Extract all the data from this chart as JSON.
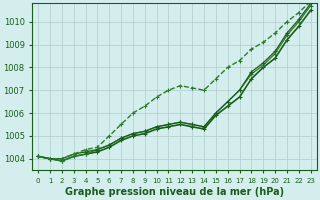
{
  "title": "Graphe pression niveau de la mer (hPa)",
  "background_color": "#d4eeee",
  "grid_color": "#b0cccc",
  "line_color_dark": "#1a5c1a",
  "line_color_mid": "#2d7a2d",
  "x_labels": [
    "0",
    "1",
    "2",
    "3",
    "4",
    "5",
    "6",
    "7",
    "8",
    "9",
    "10",
    "11",
    "12",
    "13",
    "14",
    "15",
    "16",
    "17",
    "18",
    "19",
    "20",
    "21",
    "22",
    "23"
  ],
  "ylim": [
    1003.5,
    1010.8
  ],
  "yticks": [
    1004,
    1005,
    1006,
    1007,
    1008,
    1009,
    1010
  ],
  "series": [
    {
      "values": [
        1004.1,
        1004.0,
        1003.9,
        1004.1,
        1004.2,
        1004.3,
        1004.5,
        1004.8,
        1005.0,
        1005.1,
        1005.3,
        1005.4,
        1005.5,
        1005.4,
        1005.3,
        1005.9,
        1006.3,
        1006.7,
        1007.5,
        1008.0,
        1008.4,
        1009.2,
        1009.8,
        1010.5
      ],
      "color": "#1a5c1a",
      "lw": 1.2,
      "ls": "-",
      "marker": "+"
    },
    {
      "values": [
        1004.1,
        1004.0,
        1003.9,
        1004.1,
        1004.2,
        1004.4,
        1004.6,
        1004.9,
        1005.1,
        1005.2,
        1005.4,
        1005.5,
        1005.6,
        1005.5,
        1005.4,
        1006.0,
        1006.5,
        1007.0,
        1007.7,
        1008.1,
        1008.6,
        1009.4,
        1010.0,
        1010.7
      ],
      "color": "#2d7a2d",
      "lw": 0.9,
      "ls": "-",
      "marker": "+"
    },
    {
      "values": [
        1004.1,
        1004.0,
        1004.0,
        1004.2,
        1004.3,
        1004.4,
        1004.6,
        1004.9,
        1005.1,
        1005.2,
        1005.4,
        1005.5,
        1005.6,
        1005.5,
        1005.4,
        1006.0,
        1006.5,
        1007.0,
        1007.8,
        1008.2,
        1008.7,
        1009.5,
        1010.1,
        1010.8
      ],
      "color": "#1a5c1a",
      "lw": 0.9,
      "ls": "-",
      "marker": "+"
    },
    {
      "values": [
        1004.1,
        1004.0,
        1004.0,
        1004.2,
        1004.4,
        1004.5,
        1005.0,
        1005.5,
        1006.0,
        1006.3,
        1006.7,
        1007.0,
        1007.2,
        1007.1,
        1007.0,
        1007.5,
        1008.0,
        1008.3,
        1008.8,
        1009.1,
        1009.5,
        1010.0,
        1010.4,
        1010.9
      ],
      "color": "#2d7a2d",
      "lw": 1.0,
      "ls": "--",
      "marker": "+"
    }
  ]
}
